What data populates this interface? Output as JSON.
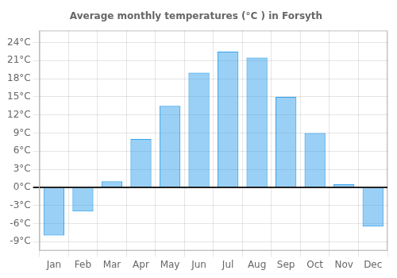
{
  "chart_data": {
    "type": "bar",
    "title": "Average monthly temperatures (°C ) in Forsyth",
    "categories": [
      "Jan",
      "Feb",
      "Mar",
      "Apr",
      "May",
      "Jun",
      "Jul",
      "Aug",
      "Sep",
      "Oct",
      "Nov",
      "Dec"
    ],
    "values": [
      -8.0,
      -4.0,
      1.0,
      8.0,
      13.5,
      19.0,
      22.5,
      21.5,
      15.0,
      9.0,
      0.5,
      -6.5
    ],
    "ylim": [
      -10.5,
      26
    ],
    "yticks": [
      {
        "value": -9,
        "label": "-9°C"
      },
      {
        "value": -6,
        "label": "-6°C"
      },
      {
        "value": -3,
        "label": "-3°C"
      },
      {
        "value": 0,
        "label": "0°C"
      },
      {
        "value": 3,
        "label": "3°C"
      },
      {
        "value": 6,
        "label": "6°C"
      },
      {
        "value": 9,
        "label": "9°C"
      },
      {
        "value": 12,
        "label": "12°C"
      },
      {
        "value": 15,
        "label": "15°C"
      },
      {
        "value": 18,
        "label": "18°C"
      },
      {
        "value": 21,
        "label": "21°C"
      },
      {
        "value": 24,
        "label": "24°C"
      }
    ],
    "grid": true
  }
}
